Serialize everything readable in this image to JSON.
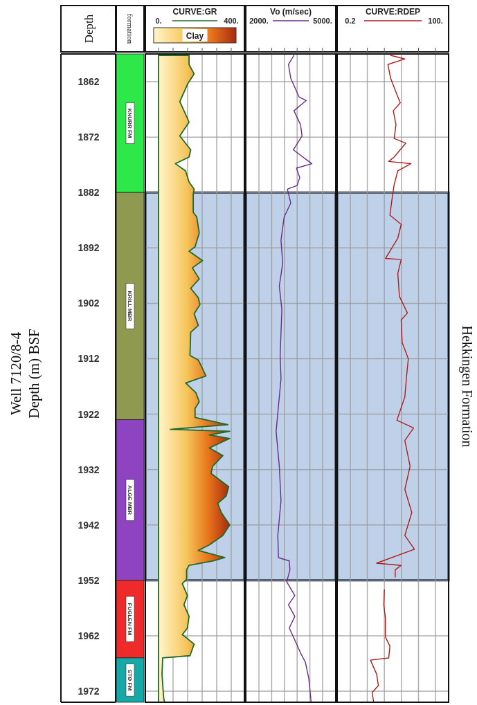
{
  "chart_data": [
    {
      "type": "bar",
      "title": "Well 7120/8-4\nDepth (m) BSF",
      "ylabel": "Depth",
      "annotations": [
        "formation"
      ],
      "categories": [
        null
      ],
      "ylim": [
        1974,
        1857
      ],
      "yticks": [
        1862,
        1872,
        1882,
        1892,
        1902,
        1912,
        1922,
        1932,
        1942,
        1952,
        1962,
        1972
      ],
      "series": [
        {
          "name": "KNURR FM",
          "color": "#2ee84a",
          "base": [
            1857
          ],
          "values": [
            25
          ]
        },
        {
          "name": "KRILL MBR",
          "color": "#8f9a50",
          "base": [
            1882
          ],
          "values": [
            41
          ]
        },
        {
          "name": "ALGE MBR",
          "color": "#8e44c0",
          "base": [
            1923
          ],
          "values": [
            29
          ]
        },
        {
          "name": "FUGLEN FM",
          "color": "#ee2a2a",
          "base": [
            1952
          ],
          "values": [
            14
          ]
        },
        {
          "name": "STØ FM",
          "color": "#17a9a8",
          "base": [
            1966
          ],
          "values": [
            8
          ]
        }
      ]
    },
    {
      "type": "area",
      "orientation": "horizontal",
      "xlabel": "CURVE:GR",
      "clabel": "Clay",
      "xlim": [
        0,
        400
      ],
      "xticks": [
        {
          "value": 0,
          "label": "0."
        },
        {
          "value": 80,
          "label": null
        },
        {
          "value": 160,
          "label": null
        },
        {
          "value": 240,
          "label": null
        },
        {
          "value": 320,
          "label": null
        },
        {
          "value": 400,
          "label": "400."
        }
      ],
      "ylim": [
        1974,
        1857
      ],
      "yticks": [
        1862,
        1872,
        1882,
        1892,
        1902,
        1912,
        1922,
        1932,
        1942,
        1952,
        1962,
        1972
      ],
      "tick_labels": "x",
      "grid": true,
      "bands": [
        {
          "axis": "y",
          "from": 1882,
          "to": 1952,
          "color": "#bfd1e8"
        }
      ],
      "series": [
        {
          "color": "#1e6b2a",
          "x": [
            1857.25,
            1858.9,
            1860.6,
            1862.3,
            1865.6,
            1867.6,
            1869.3,
            1871.8,
            1874.3,
            1875.6,
            1876.8,
            1878.1,
            1880.1,
            1881.4,
            1882.25,
            1885.6,
            1886.4,
            1889.3,
            1891.8,
            1892.6,
            1894.3,
            1895.6,
            1897.6,
            1899.3,
            1901,
            1902.25,
            1903.9,
            1906,
            1907.25,
            1911.4,
            1912.25,
            1915.1,
            1916.4,
            1918.1,
            1919.75,
            1921,
            1922.6,
            1923.9,
            1924.75,
            1925.1,
            1925.75,
            1926.4,
            1928.1,
            1929.5,
            1931.4,
            1932.7,
            1935.1,
            1936.8,
            1938.1,
            1939.75,
            1942,
            1943.9,
            1945.6,
            1946.6,
            1947.9,
            1948.5,
            1949.3,
            1950.1,
            1951.8,
            1952.6,
            1954.75,
            1956.4,
            1958.5,
            1960.6,
            1961.8,
            1963.5,
            1965.6,
            1966,
            1968.9,
            1973.1,
            1974
          ],
          "values": [
            168,
            168,
            196,
            162,
            117,
            145,
            168,
            117,
            177,
            168,
            93,
            149,
            168,
            196,
            191,
            191,
            210,
            224,
            201,
            168,
            242,
            186,
            224,
            177,
            219,
            228,
            196,
            219,
            177,
            173,
            219,
            261,
            149,
            205,
            224,
            201,
            201,
            382,
            65,
            392,
            280,
            392,
            280,
            354,
            298,
            289,
            386,
            372,
            326,
            345,
            392,
            354,
            280,
            219,
            364,
            298,
            168,
            154,
            154,
            131,
            159,
            140,
            168,
            159,
            131,
            196,
            173,
            23,
            19,
            28,
            33
          ]
        }
      ]
    },
    {
      "type": "line",
      "orientation": "horizontal",
      "xlabel": "Vo (m/sec)",
      "xlim": [
        2000,
        5000
      ],
      "xticks": [
        {
          "value": 2000,
          "label": "2000."
        },
        {
          "value": 2600,
          "label": null
        },
        {
          "value": 3200,
          "label": null
        },
        {
          "value": 3800,
          "label": null
        },
        {
          "value": 4400,
          "label": null
        },
        {
          "value": 5000,
          "label": "5000."
        }
      ],
      "ylim": [
        1974,
        1857
      ],
      "yticks": [
        1862,
        1872,
        1882,
        1892,
        1902,
        1912,
        1922,
        1932,
        1942,
        1952,
        1962,
        1972
      ],
      "tick_labels": "x",
      "grid": true,
      "bands": [
        {
          "axis": "y",
          "from": 1882,
          "to": 1952,
          "color": "#bfd1e8"
        }
      ],
      "series": [
        {
          "color": "#6a2a8a",
          "x": [
            1857.25,
            1858.9,
            1861.4,
            1864.75,
            1865.4,
            1867.25,
            1869.75,
            1871.8,
            1874.3,
            1876.8,
            1877.6,
            1879.3,
            1880.75,
            1881.4,
            1883.9,
            1886.4,
            1890.6,
            1894.75,
            1898.9,
            1903.1,
            1907.25,
            1911.4,
            1915.6,
            1918.9,
            1925.1,
            1931.4,
            1937.6,
            1943.9,
            1947.9,
            1948.5,
            1950.1,
            1952.25,
            1954.75,
            1956.4,
            1958.5,
            1960.6,
            1963.1,
            1965.1,
            1966.8,
            1969.75,
            1974
          ],
          "values": [
            3650,
            3390,
            3500,
            3890,
            4230,
            3650,
            3960,
            4030,
            3620,
            4490,
            3770,
            3920,
            3800,
            3340,
            3500,
            3190,
            3040,
            3120,
            2960,
            3080,
            3040,
            3000,
            3040,
            2960,
            2810,
            2960,
            3040,
            2890,
            2920,
            3430,
            3460,
            3310,
            3690,
            3390,
            3690,
            3430,
            3730,
            3960,
            4190,
            4350,
            4460
          ]
        }
      ]
    },
    {
      "type": "line",
      "orientation": "horizontal",
      "log": "x",
      "xlabel": "CURVE:RDEP",
      "xlim": [
        0.2,
        100
      ],
      "xticks": [
        {
          "value": 0.2,
          "label": "0.2"
        },
        {
          "value": 0.69,
          "label": null
        },
        {
          "value": 2.4,
          "label": null
        },
        {
          "value": 8.4,
          "label": null
        },
        {
          "value": 29,
          "label": null
        },
        {
          "value": 100,
          "label": "100."
        }
      ],
      "ylim": [
        1974,
        1857
      ],
      "yticks": [
        1862,
        1872,
        1882,
        1892,
        1902,
        1912,
        1922,
        1932,
        1942,
        1952,
        1962,
        1972
      ],
      "tick_labels": "x",
      "grid": true,
      "bands": [
        {
          "axis": "y",
          "from": 1882,
          "to": 1952,
          "color": "#bfd1e8",
          "label": "Hekkingen Formation"
        }
      ],
      "series": [
        {
          "color": "#b01c1c",
          "x": [
            1857.25,
            1857.9,
            1858.9,
            1861.4,
            1864.75,
            1865.8,
            1867.25,
            1869.75,
            1872.25,
            1873.1,
            1875.6,
            1876.4,
            1876.8,
            1878.1,
            1880.6,
            1882.75,
            1886.1,
            1887.75,
            1890.25,
            1893.9,
            1894.1,
            1896.6,
            1900.75,
            1903.75,
            1905,
            1909.1,
            1912,
            1915.25,
            1918.9,
            1923.1,
            1924.5,
            1926.75,
            1931.4,
            1935.6,
            1939.75,
            1943.9,
            1946.4,
            1948.9,
            1949.3,
            1950.1,
            1951.4,
            1952.5,
            1953.7,
            1956.4,
            1958.9,
            1962.25,
            1963.9,
            1966,
            1966.4,
            1968.9,
            1971,
            1972.25,
            1974
          ],
          "values": [
            3.8,
            10.7,
            3.1,
            3.8,
            6.4,
            7.7,
            4.6,
            5.6,
            4.9,
            11.4,
            4.9,
            3.3,
            16.7,
            6.4,
            4.9,
            4.3,
            3.6,
            8.2,
            6.4,
            2.6,
            8.2,
            6.4,
            7.2,
            12.9,
            8.2,
            8.8,
            13.8,
            12.1,
            10.7,
            6,
            20.3,
            10.7,
            15.7,
            10.7,
            17.8,
            10.7,
            21.6,
            1.36,
            8.2,
            5.3,
            5.3,
            null,
            2.4,
            2.3,
            2.6,
            2.6,
            3.6,
            3.3,
            0.87,
            1.36,
            1.55,
            0.98,
            1.1
          ]
        }
      ]
    }
  ]
}
